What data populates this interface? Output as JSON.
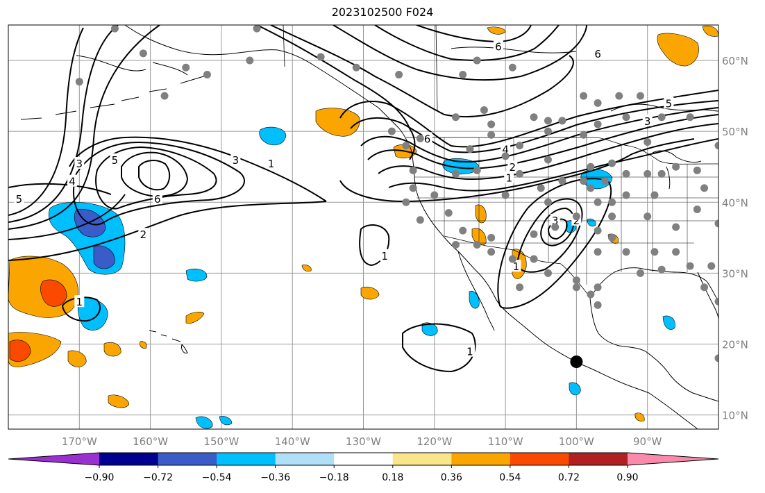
{
  "title": "2023102500 F024",
  "map": {
    "lon_range": [
      -180,
      -80
    ],
    "lat_range": [
      8,
      65
    ],
    "grid": true,
    "land_outline_color": "#000000",
    "station_color": "#808080",
    "marker_color": "#000000",
    "lon_ticks": [
      {
        "lon": -170,
        "label": "170°W"
      },
      {
        "lon": -160,
        "label": "160°W"
      },
      {
        "lon": -150,
        "label": "150°W"
      },
      {
        "lon": -140,
        "label": "140°W"
      },
      {
        "lon": -130,
        "label": "130°W"
      },
      {
        "lon": -120,
        "label": "120°W"
      },
      {
        "lon": -110,
        "label": "110°W"
      },
      {
        "lon": -100,
        "label": "100°W"
      },
      {
        "lon": -90,
        "label": "90°W"
      }
    ],
    "lat_ticks": [
      {
        "lat": 60,
        "label": "60°N"
      },
      {
        "lat": 50,
        "label": "50°N"
      },
      {
        "lat": 40,
        "label": "40°N"
      },
      {
        "lat": 30,
        "label": "30°N"
      },
      {
        "lat": 20,
        "label": "20°N"
      },
      {
        "lat": 10,
        "label": "10°N"
      }
    ],
    "contour_labels": [
      {
        "text": "5",
        "lon": -178.5,
        "lat": 40.5
      },
      {
        "text": "3",
        "lon": -170,
        "lat": 45.5
      },
      {
        "text": "4",
        "lon": -171,
        "lat": 43
      },
      {
        "text": "5",
        "lon": -165,
        "lat": 46
      },
      {
        "text": "6",
        "lon": -159,
        "lat": 40.5
      },
      {
        "text": "3",
        "lon": -148,
        "lat": 46
      },
      {
        "text": "1",
        "lon": -143,
        "lat": 45.5
      },
      {
        "text": "2",
        "lon": -161,
        "lat": 35.5
      },
      {
        "text": "1",
        "lon": -170,
        "lat": 26
      },
      {
        "text": "1",
        "lon": -127,
        "lat": 32.5
      },
      {
        "text": "1",
        "lon": -115,
        "lat": 19
      },
      {
        "text": "6",
        "lon": -121,
        "lat": 49
      },
      {
        "text": "6",
        "lon": -111,
        "lat": 62
      },
      {
        "text": "6",
        "lon": -97,
        "lat": 61
      },
      {
        "text": "5",
        "lon": -87,
        "lat": 54
      },
      {
        "text": "3",
        "lon": -90,
        "lat": 51.5
      },
      {
        "text": "4",
        "lon": -110,
        "lat": 47.5
      },
      {
        "text": "2",
        "lon": -109,
        "lat": 45
      },
      {
        "text": "1",
        "lon": -109.5,
        "lat": 43.5
      },
      {
        "text": "3",
        "lon": -103,
        "lat": 37.5
      },
      {
        "text": "2",
        "lon": -100,
        "lat": 37.5
      },
      {
        "text": "1",
        "lon": -108.5,
        "lat": 31
      }
    ],
    "stations": [
      [
        -165,
        64.5
      ],
      [
        -161,
        61
      ],
      [
        -155,
        59
      ],
      [
        -152,
        58
      ],
      [
        -158,
        55
      ],
      [
        -170,
        57
      ],
      [
        -145,
        64.5
      ],
      [
        -146,
        60
      ],
      [
        -136,
        60.5
      ],
      [
        -131,
        59
      ],
      [
        -125,
        58
      ],
      [
        -116,
        58
      ],
      [
        -114,
        60
      ],
      [
        -109,
        59
      ],
      [
        -113,
        53
      ],
      [
        -112,
        51
      ],
      [
        -112,
        49.5
      ],
      [
        -115,
        47.5
      ],
      [
        -124,
        48
      ],
      [
        -122,
        49
      ],
      [
        -126,
        50
      ],
      [
        -117,
        52
      ],
      [
        -106,
        52
      ],
      [
        -104,
        51.5
      ],
      [
        -102,
        51.5
      ],
      [
        -99,
        55
      ],
      [
        -97,
        54
      ],
      [
        -94,
        55
      ],
      [
        -91,
        55
      ],
      [
        -88,
        52
      ],
      [
        -93,
        52
      ],
      [
        -97,
        51
      ],
      [
        -99,
        49.5
      ],
      [
        -104,
        50
      ],
      [
        -108,
        48
      ],
      [
        -110,
        46.5
      ],
      [
        -114,
        44.5
      ],
      [
        -117,
        44
      ],
      [
        -123,
        44.5
      ],
      [
        -123,
        42
      ],
      [
        -120,
        41
      ],
      [
        -118,
        38.5
      ],
      [
        -116,
        36
      ],
      [
        -114,
        34
      ],
      [
        -112,
        33
      ],
      [
        -117,
        34
      ],
      [
        -122,
        37.5
      ],
      [
        -124,
        40
      ],
      [
        -110,
        41
      ],
      [
        -108,
        44
      ],
      [
        -105,
        42
      ],
      [
        -104,
        40
      ],
      [
        -103,
        36.5
      ],
      [
        -100,
        38
      ],
      [
        -99,
        43
      ],
      [
        -102,
        43
      ],
      [
        -98,
        45
      ],
      [
        -96,
        43
      ],
      [
        -95,
        45.5
      ],
      [
        -93,
        44
      ],
      [
        -90,
        48.5
      ],
      [
        -90,
        44
      ],
      [
        -88,
        44
      ],
      [
        -86,
        45
      ],
      [
        -83,
        44.5
      ],
      [
        -82,
        42
      ],
      [
        -89,
        41
      ],
      [
        -93,
        41
      ],
      [
        -95,
        40
      ],
      [
        -90,
        38
      ],
      [
        -86,
        36.5
      ],
      [
        -83,
        39
      ],
      [
        -80,
        37
      ],
      [
        -97,
        40
      ],
      [
        -95,
        38
      ],
      [
        -97,
        36
      ],
      [
        -95,
        35
      ],
      [
        -97,
        33
      ],
      [
        -93,
        33
      ],
      [
        -89,
        33
      ],
      [
        -91,
        30
      ],
      [
        -88,
        30.5
      ],
      [
        -86,
        33
      ],
      [
        -84,
        31
      ],
      [
        -81,
        31
      ],
      [
        -82,
        28
      ],
      [
        -80,
        26
      ],
      [
        -97,
        28
      ],
      [
        -100,
        29
      ],
      [
        -98,
        27
      ],
      [
        -97,
        25.5
      ],
      [
        -106,
        32
      ],
      [
        -109,
        32
      ],
      [
        -112,
        35
      ],
      [
        -104,
        30
      ],
      [
        -108,
        28
      ],
      [
        -80,
        18
      ],
      [
        -100,
        28
      ],
      [
        -98,
        42
      ],
      [
        -104,
        46
      ],
      [
        -106,
        35.5
      ],
      [
        -80,
        48
      ],
      [
        -84,
        52
      ]
    ],
    "marker": {
      "lon": -100,
      "lat": 17.5
    }
  },
  "colorbar": {
    "colors": [
      "#9b30d0",
      "#000090",
      "#3a5cc8",
      "#00bfff",
      "#b0e0f8",
      "#ffffff",
      "#fbe58a",
      "#fba500",
      "#f94a00",
      "#b02020",
      "#f98aab"
    ],
    "tick_labels": [
      "−0.90",
      "−0.72",
      "−0.54",
      "−0.36",
      "−0.18",
      "0.18",
      "0.36",
      "0.54",
      "0.72",
      "0.90"
    ]
  }
}
